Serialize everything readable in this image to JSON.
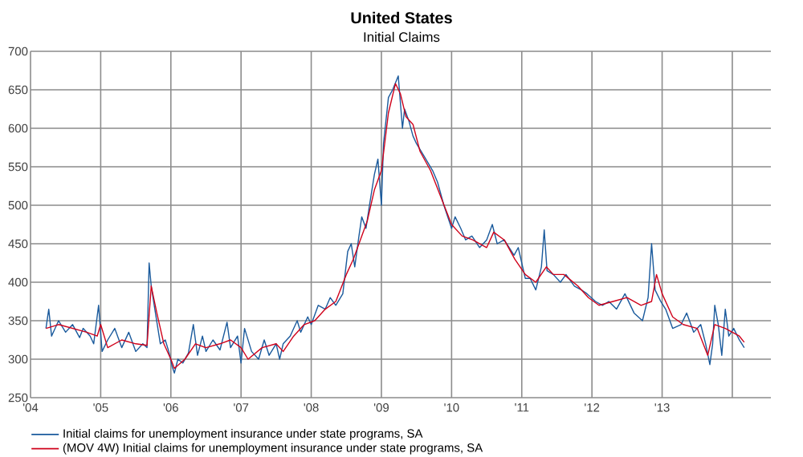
{
  "chart_data": {
    "type": "line",
    "title": "United States",
    "subtitle": "Initial Claims",
    "xlim": [
      2004,
      2014.55
    ],
    "ylim": [
      250,
      700
    ],
    "xticks": [
      {
        "value": 2004,
        "label": "'04"
      },
      {
        "value": 2005,
        "label": "'05"
      },
      {
        "value": 2006,
        "label": "'06"
      },
      {
        "value": 2007,
        "label": "'07"
      },
      {
        "value": 2008,
        "label": "'08"
      },
      {
        "value": 2009,
        "label": "'09"
      },
      {
        "value": 2010,
        "label": "'10"
      },
      {
        "value": 2011,
        "label": "'11"
      },
      {
        "value": 2012,
        "label": "'12"
      },
      {
        "value": 2013,
        "label": "'13"
      },
      {
        "value": 2014,
        "label": null
      }
    ],
    "yticks": [
      250,
      300,
      350,
      400,
      450,
      500,
      550,
      600,
      650,
      700
    ],
    "grid": true,
    "legend": "bottom",
    "marker": "none",
    "line_style": "solid",
    "series": [
      {
        "name": "Initial claims for unemployment insurance under state programs, SA",
        "color": "#1a5a9c",
        "x": [
          2004.22,
          2004.26,
          2004.3,
          2004.4,
          2004.5,
          2004.6,
          2004.7,
          2004.75,
          2004.85,
          2004.9,
          2004.97,
          2005.02,
          2005.1,
          2005.2,
          2005.3,
          2005.4,
          2005.5,
          2005.6,
          2005.66,
          2005.69,
          2005.72,
          2005.78,
          2005.85,
          2005.92,
          2005.97,
          2006.02,
          2006.05,
          2006.1,
          2006.17,
          2006.25,
          2006.32,
          2006.38,
          2006.45,
          2006.5,
          2006.6,
          2006.7,
          2006.8,
          2006.85,
          2006.95,
          2007.0,
          2007.05,
          2007.15,
          2007.25,
          2007.33,
          2007.4,
          2007.5,
          2007.55,
          2007.6,
          2007.7,
          2007.8,
          2007.85,
          2007.95,
          2008.0,
          2008.1,
          2008.2,
          2008.27,
          2008.35,
          2008.45,
          2008.52,
          2008.57,
          2008.62,
          2008.68,
          2008.72,
          2008.78,
          2008.83,
          2008.9,
          2008.95,
          2009.0,
          2009.03,
          2009.1,
          2009.16,
          2009.24,
          2009.3,
          2009.33,
          2009.39,
          2009.45,
          2009.5,
          2009.6,
          2009.73,
          2009.8,
          2009.89,
          2010.0,
          2010.05,
          2010.13,
          2010.2,
          2010.29,
          2010.4,
          2010.5,
          2010.58,
          2010.65,
          2010.75,
          2010.89,
          2010.95,
          2011.05,
          2011.12,
          2011.2,
          2011.28,
          2011.32,
          2011.36,
          2011.45,
          2011.55,
          2011.63,
          2011.75,
          2011.85,
          2011.93,
          2012.05,
          2012.15,
          2012.24,
          2012.35,
          2012.47,
          2012.6,
          2012.72,
          2012.8,
          2012.85,
          2012.9,
          2012.98,
          2013.05,
          2013.15,
          2013.27,
          2013.35,
          2013.45,
          2013.55,
          2013.62,
          2013.68,
          2013.72,
          2013.75,
          2013.8,
          2013.85,
          2013.9,
          2013.95,
          2014.02,
          2014.1,
          2014.17
        ],
        "values": [
          340,
          365,
          330,
          350,
          335,
          345,
          328,
          340,
          330,
          320,
          370,
          310,
          325,
          340,
          315,
          335,
          310,
          320,
          315,
          425,
          395,
          360,
          320,
          325,
          310,
          290,
          282,
          300,
          295,
          308,
          345,
          305,
          330,
          310,
          325,
          312,
          348,
          315,
          330,
          295,
          340,
          310,
          300,
          325,
          305,
          320,
          300,
          320,
          330,
          350,
          335,
          355,
          345,
          370,
          365,
          380,
          370,
          385,
          440,
          450,
          420,
          460,
          485,
          470,
          500,
          540,
          560,
          500,
          580,
          640,
          650,
          668,
          600,
          625,
          610,
          590,
          580,
          565,
          545,
          530,
          500,
          470,
          485,
          470,
          455,
          460,
          445,
          455,
          475,
          450,
          455,
          435,
          445,
          405,
          405,
          390,
          420,
          468,
          415,
          410,
          400,
          410,
          395,
          390,
          385,
          375,
          370,
          375,
          365,
          385,
          360,
          350,
          380,
          450,
          390,
          375,
          365,
          340,
          345,
          360,
          335,
          345,
          320,
          293,
          320,
          370,
          345,
          305,
          365,
          330,
          340,
          325,
          315
        ]
      },
      {
        "name": "(MOV 4W) Initial claims for unemployment insurance under state programs, SA",
        "color": "#d0021b",
        "x": [
          2004.22,
          2004.4,
          2004.6,
          2004.8,
          2004.95,
          2005.0,
          2005.1,
          2005.3,
          2005.5,
          2005.66,
          2005.72,
          2005.8,
          2005.9,
          2006.0,
          2006.05,
          2006.2,
          2006.35,
          2006.5,
          2006.7,
          2006.85,
          2007.0,
          2007.1,
          2007.3,
          2007.5,
          2007.6,
          2007.75,
          2007.9,
          2008.05,
          2008.2,
          2008.35,
          2008.5,
          2008.6,
          2008.7,
          2008.8,
          2008.9,
          2009.0,
          2009.1,
          2009.2,
          2009.27,
          2009.35,
          2009.45,
          2009.55,
          2009.7,
          2009.85,
          2010.0,
          2010.15,
          2010.3,
          2010.5,
          2010.6,
          2010.75,
          2010.9,
          2011.05,
          2011.2,
          2011.35,
          2011.45,
          2011.6,
          2011.8,
          2011.95,
          2012.1,
          2012.3,
          2012.5,
          2012.7,
          2012.85,
          2012.92,
          2013.0,
          2013.15,
          2013.3,
          2013.5,
          2013.65,
          2013.75,
          2013.9,
          2014.0,
          2014.1,
          2014.17
        ],
        "values": [
          340,
          345,
          340,
          335,
          330,
          345,
          315,
          325,
          320,
          318,
          395,
          360,
          320,
          300,
          288,
          300,
          320,
          315,
          320,
          325,
          315,
          300,
          315,
          320,
          310,
          330,
          345,
          350,
          365,
          375,
          410,
          430,
          455,
          480,
          520,
          545,
          620,
          658,
          645,
          615,
          605,
          570,
          545,
          510,
          475,
          460,
          455,
          445,
          465,
          455,
          430,
          410,
          400,
          420,
          410,
          410,
          395,
          380,
          370,
          375,
          380,
          370,
          375,
          410,
          385,
          355,
          345,
          340,
          305,
          345,
          340,
          335,
          330,
          322
        ]
      }
    ]
  }
}
